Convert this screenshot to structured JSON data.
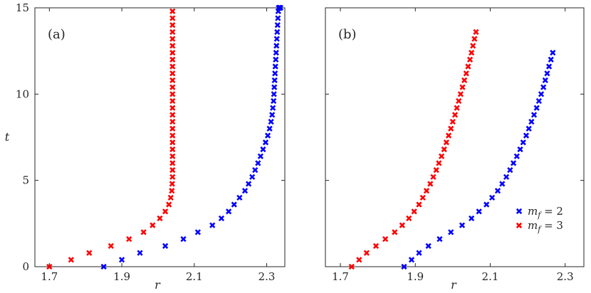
{
  "chart_data": [
    {
      "type": "scatter",
      "panel_label": "(a)",
      "xlabel": "r",
      "ylabel": "t",
      "xlim": [
        1.66,
        2.35
      ],
      "ylim": [
        0,
        15
      ],
      "xticks": [
        "1.7",
        "1.9",
        "2.1",
        "2.3"
      ],
      "yticks": [
        "0",
        "5",
        "10",
        "15"
      ],
      "grid": false,
      "series": [
        {
          "color": "#0000ff",
          "marker": "x",
          "x": [
            1.85,
            1.9,
            1.95,
            2.02,
            2.07,
            2.11,
            2.15,
            2.175,
            2.195,
            2.21,
            2.225,
            2.24,
            2.25,
            2.26,
            2.268,
            2.276,
            2.283,
            2.29,
            2.297,
            2.303,
            2.308,
            2.312,
            2.315,
            2.317,
            2.319,
            2.32,
            2.321,
            2.322,
            2.323,
            2.324,
            2.325,
            2.326,
            2.327,
            2.328,
            2.329,
            2.33,
            2.331,
            2.332,
            2.333,
            2.334,
            2.335,
            2.336,
            2.337,
            2.338
          ],
          "y": [
            0,
            0.4,
            0.8,
            1.2,
            1.6,
            2.0,
            2.4,
            2.8,
            3.2,
            3.6,
            4.0,
            4.4,
            4.8,
            5.2,
            5.6,
            6.0,
            6.4,
            6.8,
            7.2,
            7.6,
            8.0,
            8.4,
            8.8,
            9.2,
            9.6,
            10.0,
            10.4,
            10.8,
            11.2,
            11.6,
            12.0,
            12.4,
            12.8,
            13.2,
            13.6,
            14.0,
            14.4,
            14.8,
            15.0,
            15.0,
            15.0,
            15.0,
            15.0,
            15.0
          ]
        },
        {
          "color": "#ff0000",
          "marker": "x",
          "x": [
            1.7,
            1.76,
            1.81,
            1.87,
            1.92,
            1.96,
            1.985,
            2.005,
            2.02,
            2.03,
            2.035,
            2.038,
            2.039,
            2.04,
            2.04,
            2.04,
            2.04,
            2.04,
            2.04,
            2.04,
            2.04,
            2.04,
            2.04,
            2.04,
            2.04,
            2.04,
            2.04,
            2.04,
            2.04,
            2.04,
            2.04,
            2.04,
            2.04,
            2.04,
            2.04,
            2.04,
            2.04,
            2.04
          ],
          "y": [
            0,
            0.4,
            0.8,
            1.2,
            1.6,
            2.0,
            2.4,
            2.8,
            3.2,
            3.6,
            4.0,
            4.4,
            4.8,
            5.2,
            5.6,
            6.0,
            6.4,
            6.8,
            7.2,
            7.6,
            8.0,
            8.4,
            8.8,
            9.2,
            9.6,
            10.0,
            10.4,
            10.8,
            11.2,
            11.6,
            12.0,
            12.4,
            12.8,
            13.2,
            13.6,
            14.0,
            14.4,
            14.8
          ]
        }
      ]
    },
    {
      "type": "scatter",
      "panel_label": "(b)",
      "xlabel": "r",
      "ylabel": "",
      "xlim": [
        1.66,
        2.35
      ],
      "ylim": [
        0,
        15
      ],
      "xticks": [
        "1.7",
        "1.9",
        "2.1",
        "2.3"
      ],
      "yticks": [],
      "grid": false,
      "legend_position": "bottom-right",
      "series": [
        {
          "name": "m_f = 2",
          "legend_var": "m",
          "legend_sub": "f",
          "legend_rest": " = 2",
          "color": "#0000ff",
          "marker": "x",
          "x": [
            1.87,
            1.89,
            1.91,
            1.935,
            1.965,
            1.995,
            2.025,
            2.05,
            2.07,
            2.09,
            2.105,
            2.12,
            2.132,
            2.143,
            2.153,
            2.162,
            2.171,
            2.18,
            2.188,
            2.196,
            2.203,
            2.21,
            2.217,
            2.224,
            2.23,
            2.236,
            2.242,
            2.247,
            2.252,
            2.257,
            2.262,
            2.267
          ],
          "y": [
            0,
            0.4,
            0.8,
            1.2,
            1.6,
            2.0,
            2.4,
            2.8,
            3.2,
            3.6,
            4.0,
            4.4,
            4.8,
            5.2,
            5.6,
            6.0,
            6.4,
            6.8,
            7.2,
            7.6,
            8.0,
            8.4,
            8.8,
            9.2,
            9.6,
            10.0,
            10.4,
            10.8,
            11.2,
            11.6,
            12.0,
            12.4
          ]
        },
        {
          "name": "m_f = 3",
          "legend_var": "m",
          "legend_sub": "f",
          "legend_rest": " = 3",
          "color": "#ff0000",
          "marker": "x",
          "x": [
            1.73,
            1.75,
            1.77,
            1.795,
            1.82,
            1.845,
            1.865,
            1.883,
            1.897,
            1.91,
            1.92,
            1.93,
            1.94,
            1.948,
            1.956,
            1.963,
            1.97,
            1.977,
            1.983,
            1.989,
            1.995,
            2.0,
            2.006,
            2.011,
            2.016,
            2.021,
            2.026,
            2.031,
            2.036,
            2.041,
            2.046,
            2.05,
            2.054,
            2.058,
            2.062
          ],
          "y": [
            0,
            0.4,
            0.8,
            1.2,
            1.6,
            2.0,
            2.4,
            2.8,
            3.2,
            3.6,
            4.0,
            4.4,
            4.8,
            5.2,
            5.6,
            6.0,
            6.4,
            6.8,
            7.2,
            7.6,
            8.0,
            8.4,
            8.8,
            9.2,
            9.6,
            10.0,
            10.4,
            10.8,
            11.2,
            11.6,
            12.0,
            12.4,
            12.8,
            13.2,
            13.6
          ]
        }
      ]
    }
  ]
}
